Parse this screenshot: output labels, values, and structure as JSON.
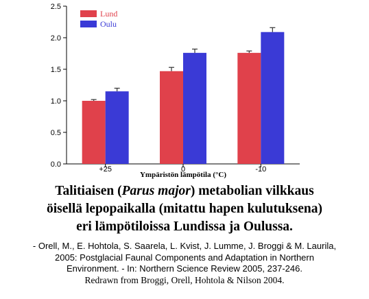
{
  "chart_data": {
    "type": "bar",
    "categories": [
      "+25",
      "0",
      "-10"
    ],
    "series": [
      {
        "name": "Lund",
        "color": "#e0414b",
        "values": [
          1.0,
          1.47,
          1.76
        ],
        "errors": [
          0.02,
          0.06,
          0.03
        ]
      },
      {
        "name": "Oulu",
        "color": "#3a3ad6",
        "values": [
          1.15,
          1.76,
          2.09
        ],
        "errors": [
          0.05,
          0.06,
          0.07
        ]
      }
    ],
    "xlabel": "Ympäristön lämpötila (°C)",
    "ylabel": "",
    "ylim": [
      0,
      2.5
    ],
    "yticks": [
      "0.0",
      "0.5",
      "1.0",
      "1.5",
      "2.0",
      "2.5"
    ],
    "grid": false,
    "legend": "top-left"
  },
  "caption": {
    "line1_pre": "Talitiaisen (",
    "line1_italic": "Parus major",
    "line1_post": ") metabolian vilkkaus",
    "line2": "öisellä lepopaikalla (mitattu hapen kulutuksena)",
    "line3": "eri lämpötiloissa Lundissa ja Oulussa."
  },
  "reference": {
    "line1": "- Orell, M., E. Hohtola, S. Saarela, L. Kvist, J. Lumme, J. Broggi & M. Laurila,",
    "line2": "2005: Postglacial Faunal Components and Adaptation in Northern",
    "line3": "Environment. - In: Northern Science Review 2005, 237-246.",
    "line4": "Redrawn from Broggi, Orell, Hohtola & Nilson 2004."
  }
}
